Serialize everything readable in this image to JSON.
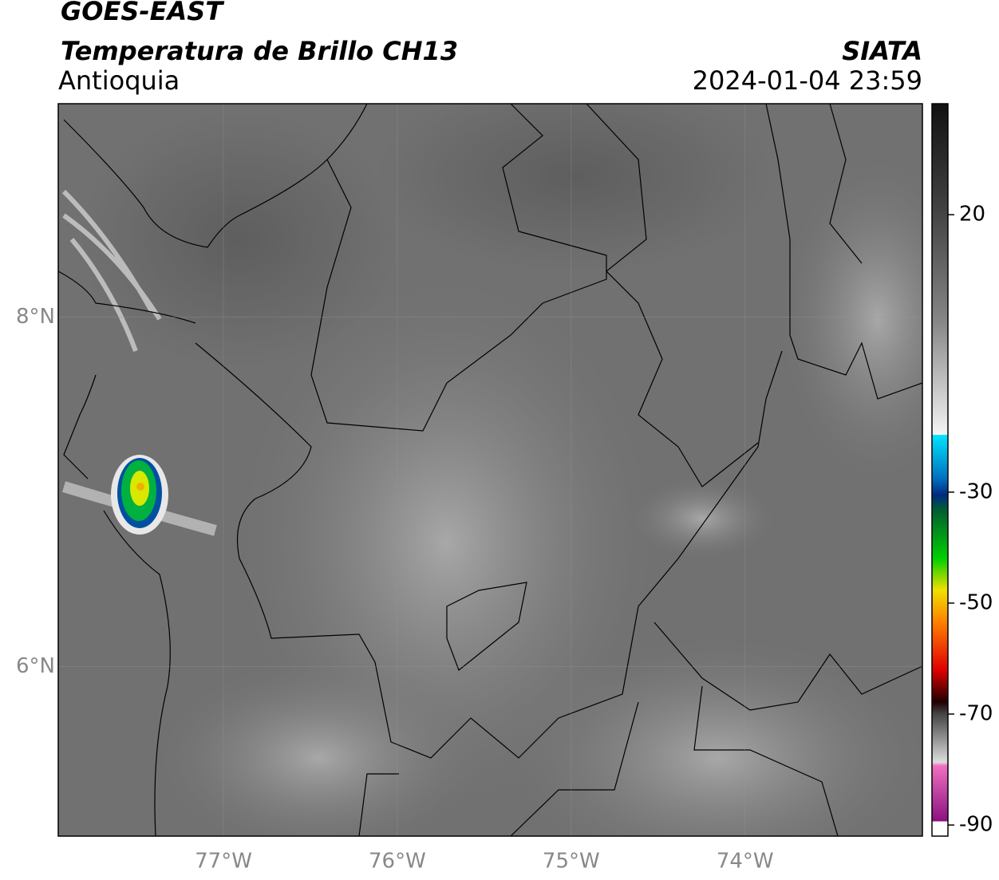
{
  "header": {
    "title": "GOES-EAST",
    "subtitle": "Temperatura de Brillo CH13",
    "region": "Antioquia",
    "source": "SIATA",
    "datetime": "2024-01-04 23:59"
  },
  "map": {
    "xlim": [
      -77.95,
      -72.98
    ],
    "ylim": [
      5.03,
      9.22
    ],
    "xticks": [
      {
        "value": -77,
        "label": "77°W"
      },
      {
        "value": -76,
        "label": "76°W"
      },
      {
        "value": -75,
        "label": "75°W"
      },
      {
        "value": -74,
        "label": "74°W"
      }
    ],
    "yticks": [
      {
        "value": 8,
        "label": "8°N"
      },
      {
        "value": 6,
        "label": "6°N"
      }
    ]
  },
  "colorbar": {
    "lim": [
      -92,
      40
    ],
    "ticks": [
      20,
      -30,
      -50,
      -70,
      -90
    ]
  }
}
